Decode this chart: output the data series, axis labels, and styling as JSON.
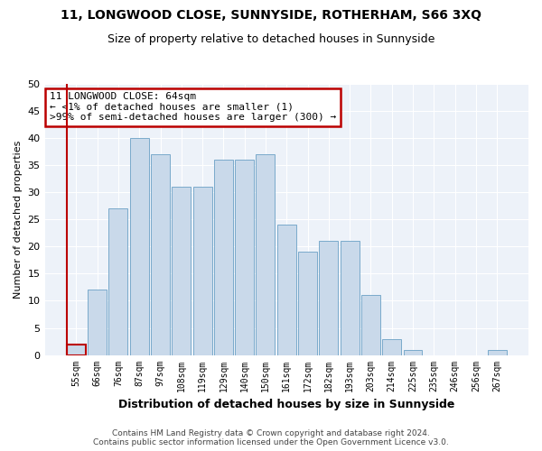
{
  "title": "11, LONGWOOD CLOSE, SUNNYSIDE, ROTHERHAM, S66 3XQ",
  "subtitle": "Size of property relative to detached houses in Sunnyside",
  "xlabel": "Distribution of detached houses by size in Sunnyside",
  "ylabel": "Number of detached properties",
  "bar_labels": [
    "55sqm",
    "66sqm",
    "76sqm",
    "87sqm",
    "97sqm",
    "108sqm",
    "119sqm",
    "129sqm",
    "140sqm",
    "150sqm",
    "161sqm",
    "172sqm",
    "182sqm",
    "193sqm",
    "203sqm",
    "214sqm",
    "225sqm",
    "235sqm",
    "246sqm",
    "256sqm",
    "267sqm"
  ],
  "bar_values": [
    2,
    12,
    27,
    40,
    37,
    31,
    31,
    36,
    36,
    37,
    24,
    19,
    21,
    21,
    11,
    3,
    1,
    0,
    0,
    0,
    1
  ],
  "bar_color": "#c9d9ea",
  "bar_edge_color": "#7aaacb",
  "highlight_bar_index": 0,
  "highlight_bar_edge_color": "#bb0000",
  "annotation_text": "11 LONGWOOD CLOSE: 64sqm\n← <1% of detached houses are smaller (1)\n>99% of semi-detached houses are larger (300) →",
  "annotation_box_edge_color": "#bb0000",
  "background_color": "#edf2f9",
  "grid_color": "#ffffff",
  "ylim": [
    0,
    50
  ],
  "yticks": [
    0,
    5,
    10,
    15,
    20,
    25,
    30,
    35,
    40,
    45,
    50
  ],
  "footer_line1": "Contains HM Land Registry data © Crown copyright and database right 2024.",
  "footer_line2": "Contains public sector information licensed under the Open Government Licence v3.0."
}
